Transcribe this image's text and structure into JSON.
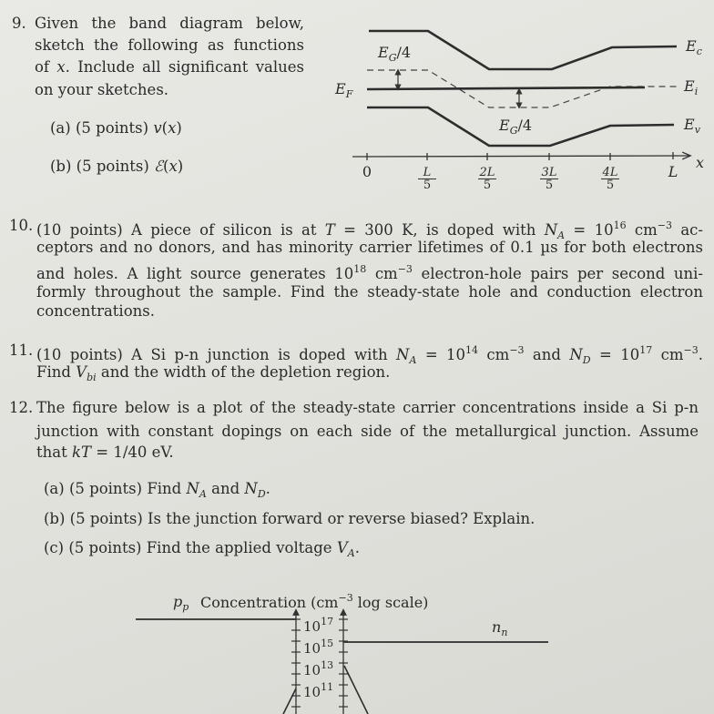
{
  "q9": {
    "number": "9.",
    "lines": [
      [
        {
          "t": "Given the band diagram below,"
        }
      ],
      [
        {
          "t": "sketch the following as functions"
        }
      ],
      [
        {
          "t": "of "
        },
        {
          "t": "x",
          "f": "i"
        },
        {
          "t": ". Include all significant values"
        }
      ],
      [
        {
          "t": "on your sketches."
        }
      ]
    ],
    "parts": [
      [
        {
          "t": "(a)  (5 points) "
        },
        {
          "t": "v",
          "f": "i"
        },
        {
          "t": "("
        },
        {
          "t": "x",
          "f": "i"
        },
        {
          "t": ")"
        }
      ],
      [
        {
          "t": "(b)  (5 points) "
        },
        {
          "t": "ℰ",
          "f": "i"
        },
        {
          "t": "("
        },
        {
          "t": "x",
          "f": "i"
        },
        {
          "t": ")"
        }
      ]
    ],
    "diagram": {
      "labels": {
        "eg4_top": [
          {
            "t": "E",
            "f": "i"
          },
          {
            "t": "G",
            "f": "sub"
          },
          {
            "t": "/4"
          }
        ],
        "ef": [
          {
            "t": "E",
            "f": "i"
          },
          {
            "t": "F",
            "f": "sub"
          }
        ],
        "eg4_bottom": [
          {
            "t": "E",
            "f": "i"
          },
          {
            "t": "G",
            "f": "sub"
          },
          {
            "t": "/4"
          }
        ],
        "ec": [
          {
            "t": "E",
            "f": "i"
          },
          {
            "t": "c",
            "f": "sub"
          }
        ],
        "ei": [
          {
            "t": "E",
            "f": "i"
          },
          {
            "t": "i",
            "f": "sub"
          }
        ],
        "ev": [
          {
            "t": "E",
            "f": "i"
          },
          {
            "t": "v",
            "f": "sub"
          }
        ],
        "x_axis": [
          {
            "t": "x",
            "f": "i"
          }
        ]
      },
      "ticks": [
        {
          "num": "0"
        },
        {
          "num": "L",
          "den": "5"
        },
        {
          "num": "2L",
          "den": "5"
        },
        {
          "num": "3L",
          "den": "5"
        },
        {
          "num": "4L",
          "den": "5"
        },
        {
          "num": "L"
        }
      ]
    }
  },
  "q10": {
    "number": "10.",
    "lines": [
      [
        {
          "t": "(10 points) A piece of silicon is at "
        },
        {
          "t": "T",
          "f": "i"
        },
        {
          "t": " = 300 K, is doped with "
        },
        {
          "t": "N",
          "f": "i"
        },
        {
          "t": "A",
          "f": "sub"
        },
        {
          "t": " = 10"
        },
        {
          "t": "16",
          "f": "sup"
        },
        {
          "t": " cm"
        },
        {
          "t": "−3",
          "f": "sup"
        },
        {
          "t": " ac-"
        }
      ],
      [
        {
          "t": "ceptors and no donors, and has minority carrier lifetimes of 0.1 µs for both electrons"
        }
      ],
      [
        {
          "t": "and holes.  A light source generates 10"
        },
        {
          "t": "18",
          "f": "sup"
        },
        {
          "t": " cm"
        },
        {
          "t": "−3",
          "f": "sup"
        },
        {
          "t": " electron-hole pairs per second uni-"
        }
      ],
      [
        {
          "t": "formly throughout the sample.  Find the steady-state hole and conduction electron"
        }
      ],
      [
        {
          "t": "concentrations."
        }
      ]
    ]
  },
  "q11": {
    "number": "11.",
    "lines": [
      [
        {
          "t": "(10 points) A Si p-n junction is doped with "
        },
        {
          "t": "N",
          "f": "i"
        },
        {
          "t": "A",
          "f": "sub"
        },
        {
          "t": " = 10"
        },
        {
          "t": "14",
          "f": "sup"
        },
        {
          "t": " cm"
        },
        {
          "t": "−3",
          "f": "sup"
        },
        {
          "t": " and "
        },
        {
          "t": "N",
          "f": "i"
        },
        {
          "t": "D",
          "f": "sub"
        },
        {
          "t": " = 10"
        },
        {
          "t": "17",
          "f": "sup"
        },
        {
          "t": " cm"
        },
        {
          "t": "−3",
          "f": "sup"
        },
        {
          "t": "."
        }
      ],
      [
        {
          "t": "Find "
        },
        {
          "t": "V",
          "f": "i"
        },
        {
          "t": "bi",
          "f": "sub"
        },
        {
          "t": " and the width of the depletion region."
        }
      ]
    ]
  },
  "q12": {
    "number": "12.",
    "lines": [
      [
        {
          "t": "The figure below is a plot of the steady-state carrier concentrations inside a Si p-n"
        }
      ],
      [
        {
          "t": "junction with constant dopings on each side of the metallurgical junction.  Assume"
        }
      ],
      [
        {
          "t": "that "
        },
        {
          "t": "kT",
          "f": "i"
        },
        {
          "t": " = 1/40 eV."
        }
      ]
    ],
    "parts": [
      [
        {
          "t": "(a)  (5 points) Find "
        },
        {
          "t": "N",
          "f": "i"
        },
        {
          "t": "A",
          "f": "sub"
        },
        {
          "t": " and "
        },
        {
          "t": "N",
          "f": "i"
        },
        {
          "t": "D",
          "f": "sub"
        },
        {
          "t": "."
        }
      ],
      [
        {
          "t": "(b)  (5 points) Is the junction forward or reverse biased? Explain."
        }
      ],
      [
        {
          "t": "(c)  (5 points) Find the applied voltage "
        },
        {
          "t": "V",
          "f": "i"
        },
        {
          "t": "A",
          "f": "sub"
        },
        {
          "t": "."
        }
      ]
    ],
    "plot": {
      "title": [
        {
          "t": "Concentration (cm"
        },
        {
          "t": "−3",
          "f": "sup"
        },
        {
          "t": " log scale)"
        }
      ],
      "pp": [
        {
          "t": "p",
          "f": "i"
        },
        {
          "t": "p",
          "f": "sub"
        }
      ],
      "nn": [
        {
          "t": "n",
          "f": "i"
        },
        {
          "t": "n",
          "f": "sub"
        }
      ],
      "ticks": [
        [
          {
            "t": "10"
          },
          {
            "t": "17",
            "f": "sup"
          }
        ],
        [
          {
            "t": "10"
          },
          {
            "t": "15",
            "f": "sup"
          }
        ],
        [
          {
            "t": "10"
          },
          {
            "t": "13",
            "f": "sup"
          }
        ],
        [
          {
            "t": "10"
          },
          {
            "t": "11",
            "f": "sup"
          }
        ]
      ]
    }
  }
}
